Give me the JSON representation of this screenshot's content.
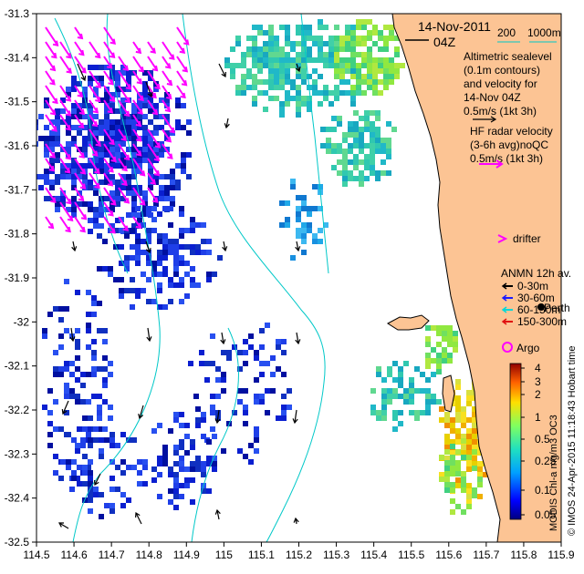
{
  "map": {
    "date": "14-Nov-2011",
    "hour": "04Z",
    "contour_legend": {
      "shallow": "200",
      "deep": "1000m"
    },
    "altimetry_text": [
      "Altimetric sealevel",
      "(0.1m contours)",
      "and velocity for",
      "14-Nov 04Z",
      "0.5m/s (1kt 3h)"
    ],
    "hf_text": [
      "HF radar velocity",
      "(3-6h avg)noQC",
      "0.5m/s (1kt 3h)"
    ],
    "drifter_label": "drifter",
    "anmn_title": "ANMN 12h av.",
    "anmn_items": [
      {
        "label": "0-30m",
        "color": "#000000"
      },
      {
        "label": "30-60m",
        "color": "#1a1aff"
      },
      {
        "label": "60-150m",
        "color": "#00d8d8"
      },
      {
        "label": "150-300m",
        "color": "#e01010"
      }
    ],
    "perth_label": "Perth",
    "argo_label": "Argo",
    "colorbar_title": "MODIS Chl-a mg/m3 OC3",
    "colorbar_ticks": [
      "4",
      "3",
      "2",
      "1",
      "0.5",
      "0.25",
      "0.1",
      "0.05"
    ],
    "credit": "© IMOS 24-Apr-2015 11:18:43 Hobart time",
    "x_ticks": [
      "114.5",
      "114.6",
      "114.7",
      "114.8",
      "114.9",
      "115",
      "115.1",
      "115.2",
      "115.3",
      "115.4",
      "115.5",
      "115.6",
      "115.7",
      "115.8",
      "115.9"
    ],
    "y_ticks": [
      "-31.3",
      "-31.4",
      "-31.5",
      "-31.6",
      "-31.7",
      "-31.8",
      "-31.9",
      "-32",
      "-32.1",
      "-32.2",
      "-32.3",
      "-32.4",
      "-32.5"
    ],
    "colors": {
      "land": "#fcc494",
      "contour": "#00c8c8",
      "hf_arrow": "#ff00ff",
      "ocean": "#ffffff"
    }
  }
}
